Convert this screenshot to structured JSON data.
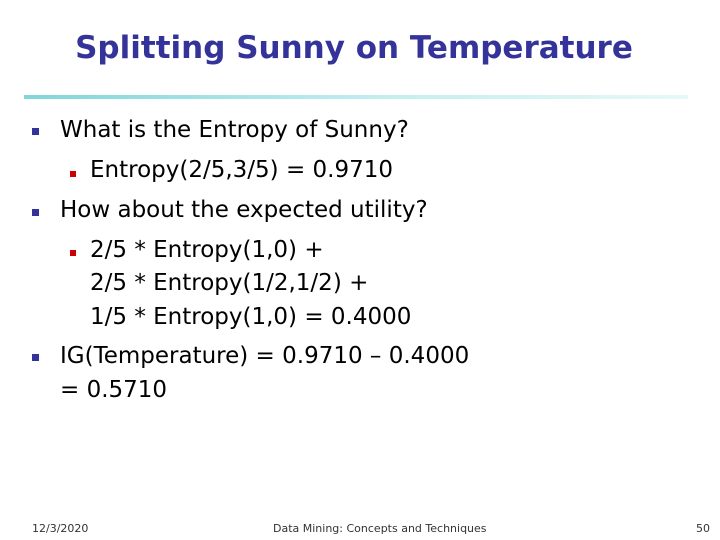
{
  "title": "Splitting Sunny on Temperature",
  "items": [
    {
      "text": "What is the Entropy of Sunny?",
      "sub": [
        "Entropy(2/5,3/5) = 0.9710"
      ]
    },
    {
      "text": "How about the expected utility?",
      "sub": [
        "2/5 * Entropy(1,0) +",
        "2/5 * Entropy(1/2,1/2) +",
        "1/5 * Entropy(1,0) = 0.4000"
      ]
    },
    {
      "text": "IG(Temperature) = 0.9710 – 0.4000",
      "cont": "= 0.5710"
    }
  ],
  "footer": {
    "date": "12/3/2020",
    "center": "Data Mining: Concepts and Techniques",
    "page": "50"
  },
  "colors": {
    "title": "#333399",
    "bullet_level1": "#333399",
    "bullet_level2": "#cc0000",
    "rule": "#7fd6d9"
  }
}
